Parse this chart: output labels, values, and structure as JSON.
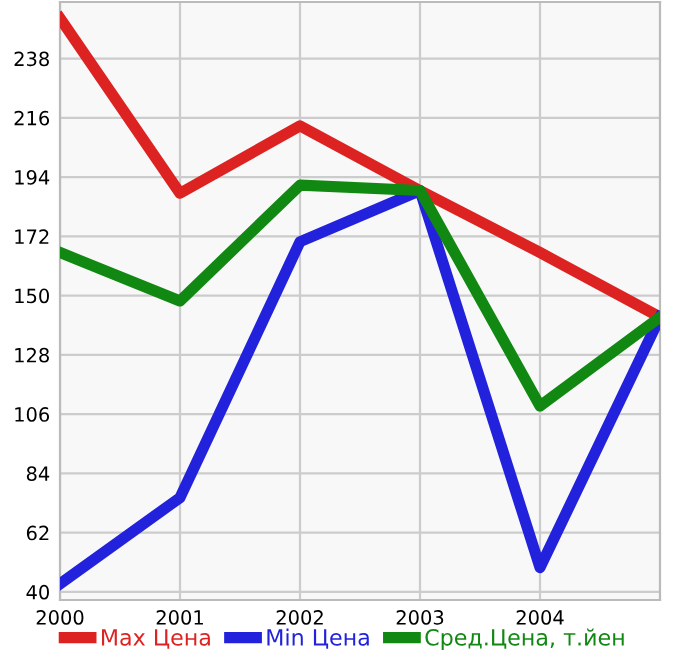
{
  "chart_data": {
    "type": "line",
    "x": [
      2000,
      2001,
      2002,
      2003,
      2004,
      2005
    ],
    "series": [
      {
        "name": "Max Цена",
        "color": "#dd2222",
        "values": [
          253,
          188,
          213,
          189,
          166,
          142
        ]
      },
      {
        "name": "Min Цена",
        "color": "#2222dd",
        "values": [
          43,
          75,
          170,
          189,
          49,
          142
        ]
      },
      {
        "name": "Сред.Цена, т.йен",
        "color": "#118811",
        "values": [
          166,
          148,
          191,
          189,
          109,
          142
        ]
      }
    ],
    "xlim": [
      2000,
      2005
    ],
    "xticks": [
      2000,
      2001,
      2002,
      2003,
      2004
    ],
    "ylim": [
      37,
      259
    ],
    "yticks": [
      40,
      62,
      84,
      106,
      128,
      150,
      172,
      194,
      216,
      238
    ],
    "grid": true,
    "legend": "bottom",
    "marker": "none",
    "line_style": "solid"
  }
}
